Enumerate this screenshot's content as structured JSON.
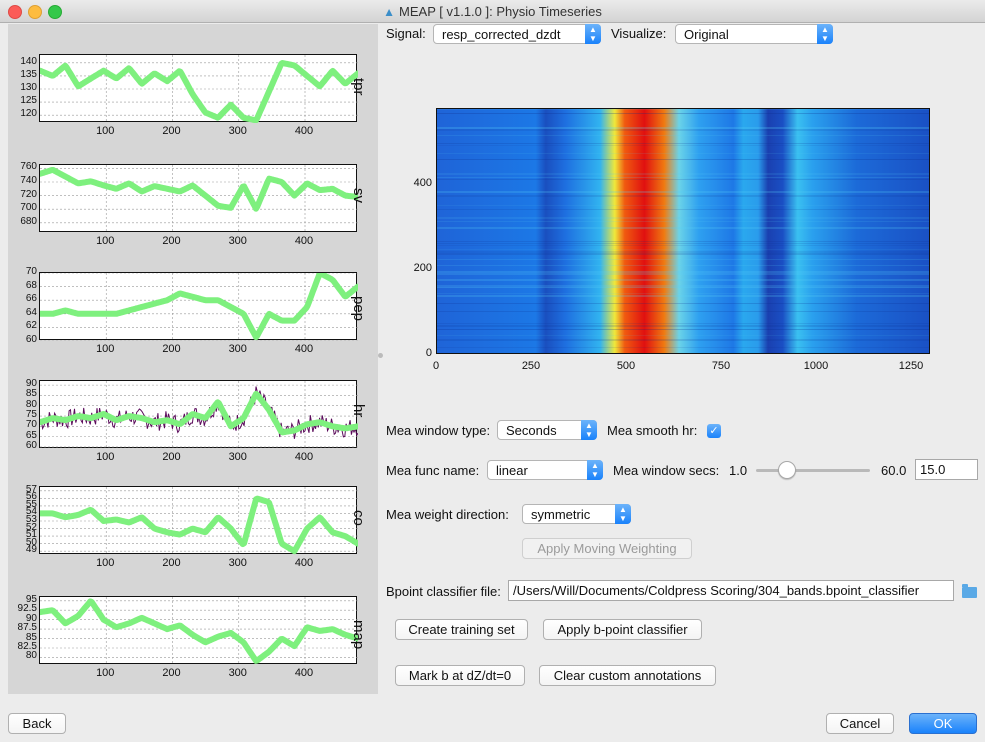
{
  "window": {
    "title": "MEAP [ v1.1.0 ]: Physio Timeseries"
  },
  "icons": {
    "app": "meap-app-icon",
    "folder": "folder-icon",
    "combo": "combo-arrow-icon",
    "check": "checkmark-icon"
  },
  "colors": {
    "accent": "#1a82fb",
    "trace": "#7ef07e",
    "trace_dark": "#5a0a5a"
  },
  "plots": {
    "x_ticks": [
      "100",
      "200",
      "300",
      "400"
    ],
    "items": [
      {
        "label": "tpr",
        "y_ticks": [
          "140",
          "135",
          "130",
          "125",
          "120"
        ],
        "ylim": [
          117,
          143
        ]
      },
      {
        "label": "sv",
        "y_ticks": [
          "760",
          "740",
          "720",
          "700",
          "680"
        ],
        "ylim": [
          665,
          765
        ]
      },
      {
        "label": "pep",
        "y_ticks": [
          "70",
          "68",
          "66",
          "64",
          "62",
          "60"
        ],
        "ylim": [
          60,
          70
        ]
      },
      {
        "label": "hr",
        "y_ticks": [
          "90",
          "85",
          "80",
          "75",
          "70",
          "65",
          "60"
        ],
        "ylim": [
          59,
          92
        ]
      },
      {
        "label": "co",
        "y_ticks": [
          "57",
          "56",
          "55",
          "54",
          "53",
          "52",
          "51",
          "50",
          "49"
        ],
        "ylim": [
          48.5,
          57.5
        ]
      },
      {
        "label": "map",
        "y_ticks": [
          "95",
          "92.5",
          "90",
          "87.5",
          "85",
          "82.5",
          "80"
        ],
        "ylim": [
          78,
          96
        ]
      }
    ]
  },
  "signal": {
    "label": "Signal:",
    "value": "resp_corrected_dzdt"
  },
  "visualize": {
    "label": "Visualize:",
    "value": "Original"
  },
  "heatmap": {
    "x_ticks": [
      "0",
      "250",
      "500",
      "750",
      "1000",
      "1250"
    ],
    "y_ticks": [
      "0",
      "200",
      "400"
    ],
    "xlim": [
      0,
      1300
    ],
    "ylim": [
      0,
      580
    ]
  },
  "mea": {
    "window_type_label": "Mea window type:",
    "window_type_value": "Seconds",
    "smooth_hr_label": "Mea smooth hr:",
    "func_name_label": "Mea func name:",
    "func_name_value": "linear",
    "window_secs_label": "Mea window secs:",
    "slider_min": "1.0",
    "slider_max": "60.0",
    "window_secs_value": "15.0",
    "weight_direction_label": "Mea weight direction:",
    "weight_direction_value": "symmetric",
    "apply_button": "Apply Moving Weighting"
  },
  "bpoint": {
    "file_label": "Bpoint classifier file:",
    "file_value": "/Users/Will/Documents/Coldpress Scoring/304_bands.bpoint_classifier",
    "create_training_button": "Create training set",
    "apply_classifier_button": "Apply b-point classifier",
    "mark_b_button": "Mark b at dZ/dt=0",
    "clear_annotations_button": "Clear custom annotations"
  },
  "footer": {
    "back": "Back",
    "cancel": "Cancel",
    "ok": "OK"
  }
}
